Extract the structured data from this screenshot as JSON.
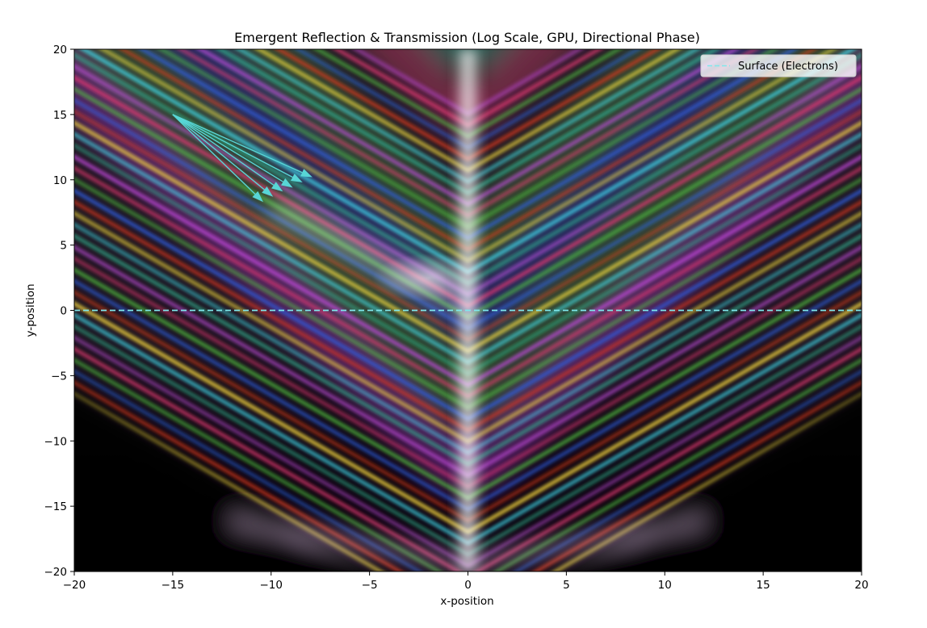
{
  "chart_data": {
    "type": "heatmap",
    "title": "Emergent Reflection & Transmission (Log Scale, GPU, Directional Phase)",
    "xlabel": "x-position",
    "ylabel": "y-position",
    "xlim": [
      -20,
      20
    ],
    "ylim": [
      -20,
      20
    ],
    "x_ticks": [
      -20,
      -15,
      -10,
      -5,
      0,
      5,
      10,
      15,
      20
    ],
    "y_ticks": [
      -20,
      -15,
      -10,
      -5,
      0,
      5,
      10,
      15,
      20
    ],
    "x_tick_labels": [
      "−20",
      "−15",
      "−10",
      "−5",
      "0",
      "5",
      "10",
      "15",
      "20"
    ],
    "y_tick_labels": [
      "−20",
      "−15",
      "−10",
      "−5",
      "0",
      "5",
      "10",
      "15",
      "20"
    ],
    "grid": false,
    "legend": {
      "placement": "top-right",
      "entries": [
        {
          "label": "Surface (Electrons)",
          "style": "dashed",
          "color": "#7fe8ec"
        }
      ]
    },
    "surface_line": {
      "y": 0,
      "x_range": [
        -20,
        20
      ],
      "color": "#7fe8ec",
      "style": "dashed"
    },
    "wave_vectors": {
      "color": "#58d6d6",
      "origin": [
        -15,
        15
      ],
      "tips": [
        [
          -10.4,
          8.3
        ],
        [
          -9.9,
          8.7
        ],
        [
          -9.4,
          9.1
        ],
        [
          -8.9,
          9.4
        ],
        [
          -8.4,
          9.8
        ],
        [
          -7.9,
          10.2
        ]
      ]
    },
    "background_color": "#000000",
    "colors": {
      "bright_core": "#ffffff",
      "violet": "#b040c8",
      "magenta": "#c8306a",
      "green": "#4aa040",
      "blue": "#3050c8",
      "red": "#c03020",
      "yellow": "#e0c040",
      "cyan": "#40c0d8",
      "teal": "#309080",
      "dark_violet": "#2a0a30"
    }
  }
}
